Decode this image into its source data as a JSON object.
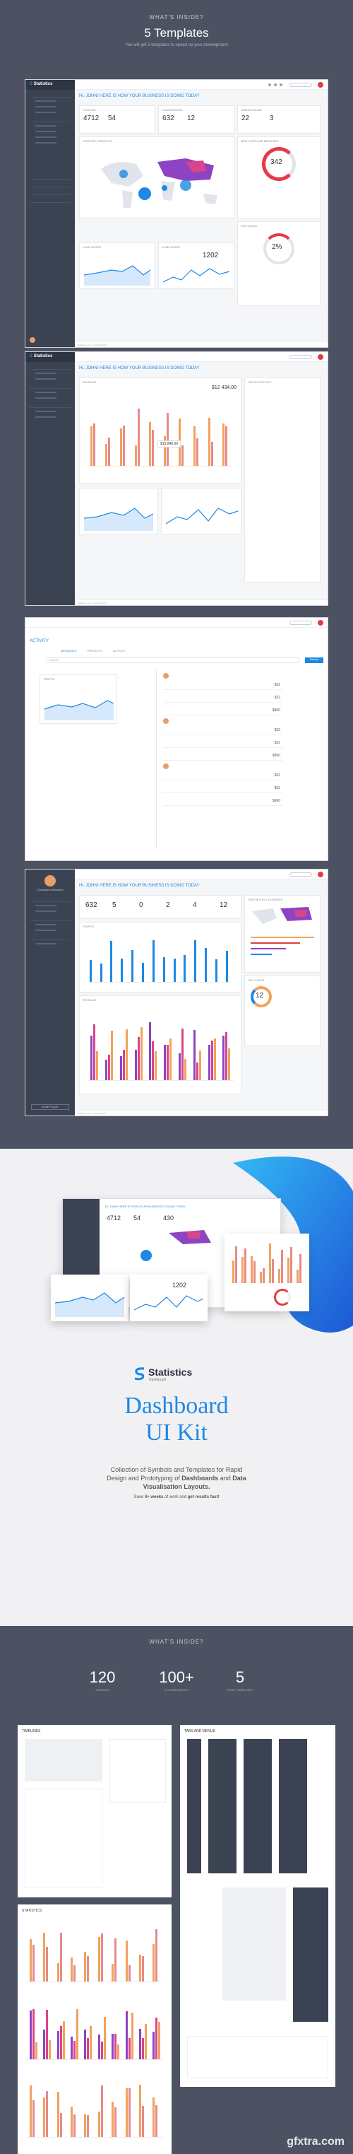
{
  "top": {
    "kicker": "WHAT'S INSIDE?",
    "title": "5 Templates",
    "subtitle": "You will get 5 templates to speed up your development"
  },
  "dash1": {
    "brand": "Statistics",
    "hello": "HI, JOHN! HERE IS HOW YOUR BUSINESS IS DOING TODAY",
    "cards": [
      {
        "title": "VISITORS",
        "values": [
          "4712",
          "54"
        ]
      },
      {
        "title": "CONVERSIONS",
        "values": [
          "632",
          "12"
        ]
      },
      {
        "title": "USERS ONLINE",
        "values": [
          "22",
          "3"
        ]
      }
    ],
    "map_title": "VISITORS STATISTICS",
    "donut_title": "MOST POPULAR BROWSER",
    "donut_value": "342",
    "cpu_title": "CPU USAGE",
    "cpu_value": "2%",
    "line1_title": "LOAD GRAPH",
    "line2_title": "LOAD GRAPH",
    "line2_value": "1202",
    "footer": "Statistics v1.0 · Copyright 2017"
  },
  "dash2": {
    "hello": "HI, JOHN! HERE IS HOW YOUR BUSINESS IS DOING TODAY",
    "chart_title": "REVENUE",
    "chart_value": "$12 434.00",
    "tooltip": "$15 840.00",
    "activity_title": "LATEST ACTIVITY"
  },
  "dash3": {
    "title": "ACTIVITY",
    "tabs": [
      "MESSAGES",
      "PROJECTS",
      "ACTIVITY"
    ],
    "search_placeholder": "Search",
    "button": "Search",
    "graph_title": "TRAFFIC",
    "prices": [
      "$32",
      "$32",
      "$960",
      "$32",
      "$32",
      "$960",
      "$32",
      "$32",
      "$960"
    ]
  },
  "dash4": {
    "hello": "HI, JOHN! HERE IS HOW YOUR BUSINESS IS DOING TODAY",
    "user": "Christopher Bowman",
    "stats": [
      "632",
      "5",
      "0",
      "2",
      "4",
      "12"
    ],
    "chart_title": "TRAFFIC",
    "revenue_title": "REVENUE",
    "revenue_value": "$12 434.00",
    "map_title": "VISITORS BY COUNTRIES",
    "donut_title": "CPU USAGE",
    "donut_value": "12",
    "button": "Invite People"
  },
  "hero": {
    "brand": "Statistics",
    "brand_sub": "Dashboard",
    "title_line1": "Dashboard",
    "title_line2": "UI Kit",
    "desc_line1": "Collection of Symbols and Templates for Rapid",
    "desc_line2_a": "Design and Prototyping of ",
    "desc_line2_b": "Dashboards",
    "desc_line2_c": " and ",
    "desc_line2_d": "Data",
    "desc_line3": "Visualisation Layouts.",
    "save_a": "Save ",
    "save_b": "4+ weeks",
    "save_c": " of work and ",
    "save_d": "get results fast!",
    "mock_numbers": [
      "4712",
      "54",
      "430"
    ],
    "mock_value": "1202"
  },
  "inside": {
    "kicker": "WHAT'S INSIDE?",
    "stats": [
      {
        "value": "120",
        "label": "SCREENS"
      },
      {
        "value": "100+",
        "label": "UI COMPONENTS"
      },
      {
        "value": "5",
        "label": "PAGE TEMPLATES"
      }
    ],
    "card_titles": [
      "TIMELINES",
      "TABS AND MENUS",
      "STATISTICS"
    ]
  },
  "watermark": "gfxtra.com",
  "colors": {
    "accent": "#1e88e5",
    "sidebar": "#3b4252",
    "background": "#4c5262",
    "danger": "#e53948"
  }
}
